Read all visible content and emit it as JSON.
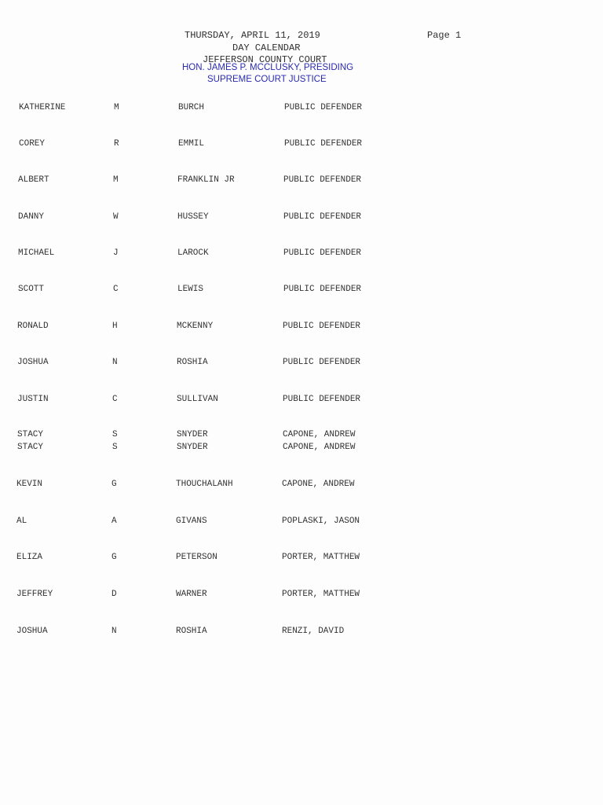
{
  "header": {
    "date": "THURSDAY, APRIL 11, 2019",
    "page": "Page 1",
    "title": "DAY CALENDAR",
    "court": "JEFFERSON COUNTY COURT",
    "judge": "HON. JAMES P. MCCLUSKY, PRESIDING",
    "judge_title": "SUPREME COURT JUSTICE"
  },
  "rows": [
    [
      "KATHERINE",
      "M",
      "BURCH",
      "PUBLIC DEFENDER"
    ],
    [
      "COREY",
      "R",
      "EMMIL",
      "PUBLIC DEFENDER"
    ],
    [
      "ALBERT",
      "M",
      "FRANKLIN JR",
      "PUBLIC DEFENDER"
    ],
    [
      "DANNY",
      "W",
      "HUSSEY",
      "PUBLIC DEFENDER"
    ],
    [
      "MICHAEL",
      "J",
      "LAROCK",
      "PUBLIC DEFENDER"
    ],
    [
      "SCOTT",
      "C",
      "LEWIS",
      "PUBLIC DEFENDER"
    ],
    [
      "RONALD",
      "H",
      "MCKENNY",
      "PUBLIC DEFENDER"
    ],
    [
      "JOSHUA",
      "N",
      "ROSHIA",
      "PUBLIC DEFENDER"
    ],
    [
      "JUSTIN",
      "C",
      "SULLIVAN",
      "PUBLIC DEFENDER"
    ],
    [
      "STACY",
      "S",
      "SNYDER",
      "CAPONE, ANDREW"
    ],
    [
      "STACY",
      "S",
      "SNYDER",
      "CAPONE, ANDREW"
    ],
    [
      "KEVIN",
      "G",
      "THOUCHALANH",
      "CAPONE, ANDREW"
    ],
    [
      "AL",
      "A",
      "GIVANS",
      "POPLASKI, JASON"
    ],
    [
      "ELIZA",
      "G",
      "PETERSON",
      "PORTER, MATTHEW"
    ],
    [
      "JEFFREY",
      "D",
      "WARNER",
      "PORTER, MATTHEW"
    ],
    [
      "JOSHUA",
      "N",
      "ROSHIA",
      "RENZI, DAVID"
    ]
  ]
}
